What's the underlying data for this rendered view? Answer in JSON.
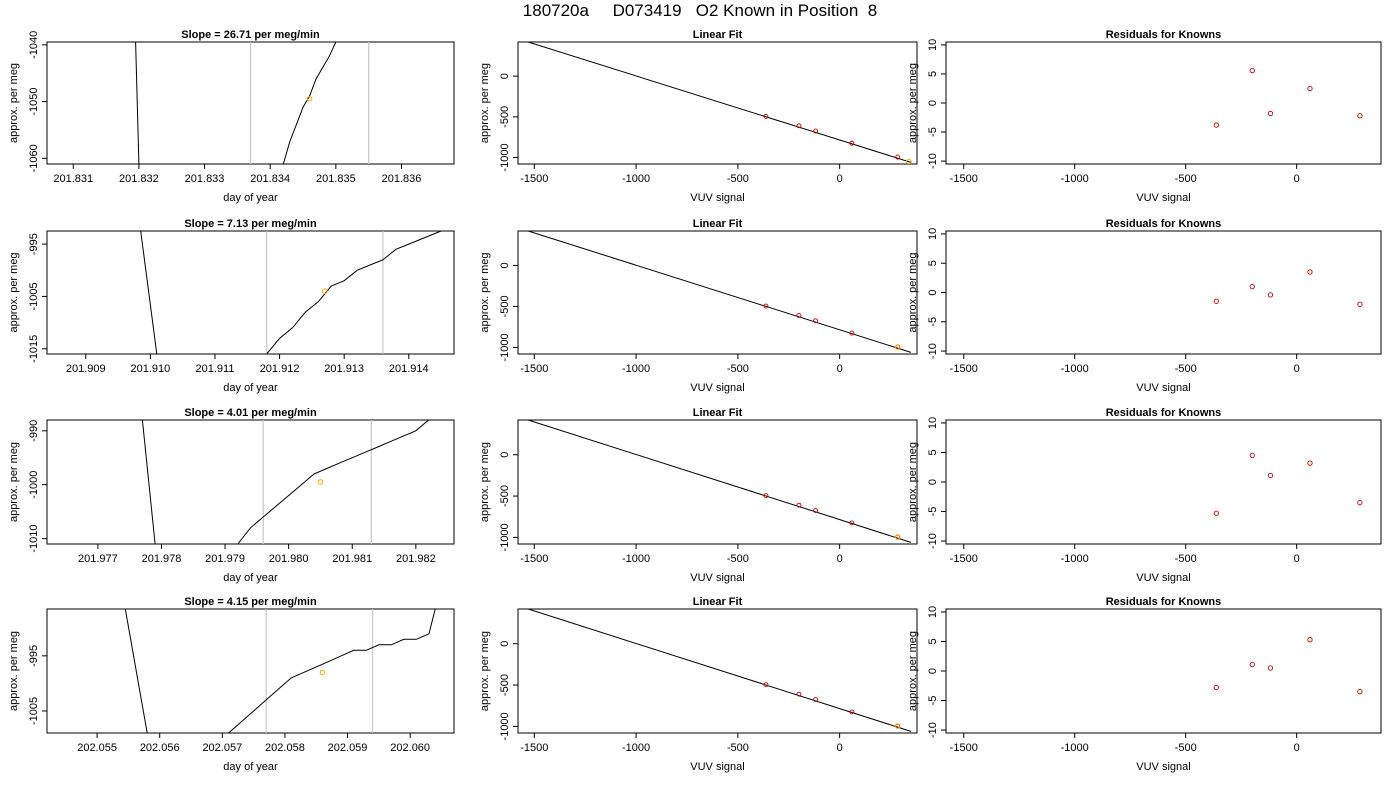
{
  "page": {
    "title": "180720a     D073419   O2 Known in Position  8"
  },
  "colors": {
    "axis": "#000000",
    "trace": "#000000",
    "marker_orange": "#ffa500",
    "residual_red": "#cc0000",
    "vline": "#c8c8c8"
  },
  "chart_data": [
    {
      "type": "line",
      "title": "Slope =  26.71  per meg/min",
      "xlabel": "day of year",
      "ylabel": "approx. per meg",
      "xlim": [
        201.8306,
        201.8368
      ],
      "ylim": [
        -1061,
        -1039.5
      ],
      "xticks": [
        201.831,
        201.832,
        201.833,
        201.834,
        201.835,
        201.836
      ],
      "xtick_labels": [
        "201.831",
        "201.832",
        "201.833",
        "201.834",
        "201.835",
        "201.836"
      ],
      "yticks": [
        -1060,
        -1050,
        -1040
      ],
      "ytick_labels": [
        "-1060",
        "-1050",
        "-1040"
      ],
      "vlines": [
        201.8337,
        201.8355
      ],
      "marker": {
        "x": 201.8346,
        "y": -1049.5
      },
      "trace_segments": [
        {
          "x": [
            201.83195,
            201.832
          ],
          "y": [
            -1039.5,
            -1061
          ]
        },
        {
          "x": [
            201.8342,
            201.8343,
            201.8344,
            201.8345,
            201.8346,
            201.8347,
            201.8348,
            201.8349,
            201.835
          ],
          "y": [
            -1061,
            -1057,
            -1054,
            -1051,
            -1049,
            -1046,
            -1044,
            -1042,
            -1039.5
          ]
        }
      ]
    },
    {
      "type": "scatter",
      "title": "Linear Fit",
      "xlabel": "VUV signal",
      "ylabel": "approx. per meg",
      "xlim": [
        -1580,
        380
      ],
      "ylim": [
        -1080,
        420
      ],
      "xticks": [
        -1500,
        -1000,
        -500,
        0
      ],
      "xtick_labels": [
        "-1500",
        "-1000",
        "-500",
        "0"
      ],
      "yticks": [
        -1000,
        -500,
        0
      ],
      "ytick_labels": [
        "-1000",
        "-500",
        "0"
      ],
      "fit_line": {
        "x": [
          -1530,
          350
        ],
        "y": [
          420,
          -1060
        ]
      },
      "points": {
        "x": [
          -362,
          -200,
          -118,
          60,
          285
        ],
        "y": [
          -495,
          -610,
          -675,
          -825,
          -995
        ]
      },
      "highlight": {
        "x": 340,
        "y": -1050
      }
    },
    {
      "type": "scatter",
      "title": "Residuals for Knowns",
      "xlabel": "VUV signal",
      "ylabel": "approx. per meg",
      "xlim": [
        -1580,
        380
      ],
      "ylim": [
        -10.5,
        10.5
      ],
      "xticks": [
        -1500,
        -1000,
        -500,
        0
      ],
      "xtick_labels": [
        "-1500",
        "-1000",
        "-500",
        "0"
      ],
      "yticks": [
        -10,
        -5,
        0,
        5,
        10
      ],
      "ytick_labels": [
        "-10",
        "-5",
        "0",
        "5",
        "10"
      ],
      "points": {
        "x": [
          -362,
          -200,
          -118,
          60,
          285
        ],
        "y": [
          -3.8,
          5.6,
          -1.8,
          2.5,
          -2.2
        ]
      }
    },
    {
      "type": "line",
      "title": "Slope =  7.13  per meg/min",
      "xlabel": "day of year",
      "ylabel": "approx. per meg",
      "xlim": [
        201.9084,
        201.9147
      ],
      "ylim": [
        -1016,
        -992.5
      ],
      "xticks": [
        201.909,
        201.91,
        201.911,
        201.912,
        201.913,
        201.914
      ],
      "xtick_labels": [
        "201.909",
        "201.910",
        "201.911",
        "201.912",
        "201.913",
        "201.914"
      ],
      "yticks": [
        -1015,
        -1005,
        -995
      ],
      "ytick_labels": [
        "-1015",
        "-1005",
        "-995"
      ],
      "vlines": [
        201.9118,
        201.9136
      ],
      "marker": {
        "x": 201.9127,
        "y": -1004
      },
      "trace_segments": [
        {
          "x": [
            201.90985,
            201.9101
          ],
          "y": [
            -992.5,
            -1016
          ]
        },
        {
          "x": [
            201.9118,
            201.912,
            201.9122,
            201.9124,
            201.9126,
            201.9128,
            201.913,
            201.9132,
            201.9134,
            201.9136,
            201.9138,
            201.914,
            201.9142,
            201.9144,
            201.9145
          ],
          "y": [
            -1016,
            -1013,
            -1011,
            -1008,
            -1006,
            -1003,
            -1002,
            -1000,
            -999,
            -998,
            -996,
            -995,
            -994,
            -993,
            -992.5
          ]
        }
      ]
    },
    {
      "type": "scatter",
      "title": "Linear Fit",
      "xlabel": "VUV signal",
      "ylabel": "approx. per meg",
      "xlim": [
        -1580,
        380
      ],
      "ylim": [
        -1080,
        420
      ],
      "xticks": [
        -1500,
        -1000,
        -500,
        0
      ],
      "xtick_labels": [
        "-1500",
        "-1000",
        "-500",
        "0"
      ],
      "yticks": [
        -1000,
        -500,
        0
      ],
      "ytick_labels": [
        "-1000",
        "-500",
        "0"
      ],
      "fit_line": {
        "x": [
          -1530,
          350
        ],
        "y": [
          420,
          -1060
        ]
      },
      "points": {
        "x": [
          -362,
          -200,
          -118,
          60,
          285
        ],
        "y": [
          -495,
          -610,
          -675,
          -825,
          -995
        ]
      },
      "highlight": {
        "x": 285,
        "y": -995
      }
    },
    {
      "type": "scatter",
      "title": "Residuals for Knowns",
      "xlabel": "VUV signal",
      "ylabel": "approx. per meg",
      "xlim": [
        -1580,
        380
      ],
      "ylim": [
        -10.5,
        10.5
      ],
      "xticks": [
        -1500,
        -1000,
        -500,
        0
      ],
      "xtick_labels": [
        "-1500",
        "-1000",
        "-500",
        "0"
      ],
      "yticks": [
        -10,
        -5,
        0,
        5,
        10
      ],
      "ytick_labels": [
        "-10",
        "-5",
        "0",
        "5",
        "10"
      ],
      "points": {
        "x": [
          -362,
          -200,
          -118,
          60,
          285
        ],
        "y": [
          -1.5,
          1.0,
          -0.4,
          3.5,
          -2.0
        ]
      }
    },
    {
      "type": "line",
      "title": "Slope =  4.01  per meg/min",
      "xlabel": "day of year",
      "ylabel": "approx. per meg",
      "xlim": [
        201.9762,
        201.9826
      ],
      "ylim": [
        -1011,
        -988
      ],
      "xticks": [
        201.977,
        201.978,
        201.979,
        201.98,
        201.981,
        201.982
      ],
      "xtick_labels": [
        "201.977",
        "201.978",
        "201.979",
        "201.980",
        "201.981",
        "201.982"
      ],
      "yticks": [
        -1010,
        -1000,
        -990
      ],
      "ytick_labels": [
        "-1010",
        "-1000",
        "-990"
      ],
      "vlines": [
        201.9796,
        201.9813
      ],
      "marker": {
        "x": 201.9805,
        "y": -999.5
      },
      "trace_segments": [
        {
          "x": [
            201.9777,
            201.9779
          ],
          "y": [
            -988,
            -1011
          ]
        },
        {
          "x": [
            201.9792,
            201.9794,
            201.9796,
            201.9798,
            201.98,
            201.9802,
            201.9804,
            201.9806,
            201.9808,
            201.981,
            201.9812,
            201.9814,
            201.9816,
            201.9818,
            201.982,
            201.9822
          ],
          "y": [
            -1011,
            -1008,
            -1006,
            -1004,
            -1002,
            -1000,
            -998,
            -997,
            -996,
            -995,
            -994,
            -993,
            -992,
            -991,
            -990,
            -988
          ]
        }
      ]
    },
    {
      "type": "scatter",
      "title": "Linear Fit",
      "xlabel": "VUV signal",
      "ylabel": "approx. per meg",
      "xlim": [
        -1580,
        380
      ],
      "ylim": [
        -1080,
        420
      ],
      "xticks": [
        -1500,
        -1000,
        -500,
        0
      ],
      "xtick_labels": [
        "-1500",
        "-1000",
        "-500",
        "0"
      ],
      "yticks": [
        -1000,
        -500,
        0
      ],
      "ytick_labels": [
        "-1000",
        "-500",
        "0"
      ],
      "fit_line": {
        "x": [
          -1530,
          350
        ],
        "y": [
          420,
          -1060
        ]
      },
      "points": {
        "x": [
          -362,
          -200,
          -118,
          60,
          285
        ],
        "y": [
          -495,
          -610,
          -675,
          -825,
          -995
        ]
      },
      "highlight": {
        "x": 285,
        "y": -995
      }
    },
    {
      "type": "scatter",
      "title": "Residuals for Knowns",
      "xlabel": "VUV signal",
      "ylabel": "approx. per meg",
      "xlim": [
        -1580,
        380
      ],
      "ylim": [
        -10.5,
        10.5
      ],
      "xticks": [
        -1500,
        -1000,
        -500,
        0
      ],
      "xtick_labels": [
        "-1500",
        "-1000",
        "-500",
        "0"
      ],
      "yticks": [
        -10,
        -5,
        0,
        5,
        10
      ],
      "ytick_labels": [
        "-10",
        "-5",
        "0",
        "5",
        "10"
      ],
      "points": {
        "x": [
          -362,
          -200,
          -118,
          60,
          285
        ],
        "y": [
          -5.3,
          4.5,
          1.1,
          3.2,
          -3.5
        ]
      }
    },
    {
      "type": "line",
      "title": "Slope =  4.15  per meg/min",
      "xlabel": "day of year",
      "ylabel": "approx. per meg",
      "xlim": [
        202.0542,
        202.0607
      ],
      "ylim": [
        -1009,
        -986.5
      ],
      "xticks": [
        202.055,
        202.056,
        202.057,
        202.058,
        202.059,
        202.06
      ],
      "xtick_labels": [
        "202.055",
        "202.056",
        "202.057",
        "202.058",
        "202.059",
        "202.060"
      ],
      "yticks": [
        -1005,
        -995
      ],
      "ytick_labels": [
        "-1005",
        "-995"
      ],
      "vlines": [
        202.0577,
        202.0594
      ],
      "marker": {
        "x": 202.0586,
        "y": -998
      },
      "trace_segments": [
        {
          "x": [
            202.05545,
            202.0558
          ],
          "y": [
            -986.5,
            -1009
          ]
        },
        {
          "x": [
            202.0571,
            202.0573,
            202.0575,
            202.0577,
            202.0579,
            202.0581,
            202.0583,
            202.0585,
            202.0587,
            202.0589,
            202.0591,
            202.0593,
            202.0595,
            202.0597,
            202.0599,
            202.0601,
            202.0603,
            202.0604
          ],
          "y": [
            -1009,
            -1007,
            -1005,
            -1003,
            -1001,
            -999,
            -998,
            -997,
            -996,
            -995,
            -994,
            -994,
            -993,
            -993,
            -992,
            -992,
            -991,
            -986.5
          ]
        }
      ]
    },
    {
      "type": "scatter",
      "title": "Linear Fit",
      "xlabel": "VUV signal",
      "ylabel": "approx. per meg",
      "xlim": [
        -1580,
        380
      ],
      "ylim": [
        -1080,
        420
      ],
      "xticks": [
        -1500,
        -1000,
        -500,
        0
      ],
      "xtick_labels": [
        "-1500",
        "-1000",
        "-500",
        "0"
      ],
      "yticks": [
        -1000,
        -500,
        0
      ],
      "ytick_labels": [
        "-1000",
        "-500",
        "0"
      ],
      "fit_line": {
        "x": [
          -1530,
          350
        ],
        "y": [
          420,
          -1060
        ]
      },
      "points": {
        "x": [
          -362,
          -200,
          -118,
          60,
          285
        ],
        "y": [
          -495,
          -610,
          -675,
          -825,
          -995
        ]
      },
      "highlight": {
        "x": 285,
        "y": -995
      }
    },
    {
      "type": "scatter",
      "title": "Residuals for Knowns",
      "xlabel": "VUV signal",
      "ylabel": "approx. per meg",
      "xlim": [
        -1580,
        380
      ],
      "ylim": [
        -10.5,
        10.5
      ],
      "xticks": [
        -1500,
        -1000,
        -500,
        0
      ],
      "xtick_labels": [
        "-1500",
        "-1000",
        "-500",
        "0"
      ],
      "yticks": [
        -10,
        -5,
        0,
        5,
        10
      ],
      "ytick_labels": [
        "-10",
        "-5",
        "0",
        "5",
        "10"
      ],
      "points": {
        "x": [
          -362,
          -200,
          -118,
          60,
          285
        ],
        "y": [
          -2.8,
          1.1,
          0.5,
          5.3,
          -3.5
        ]
      }
    }
  ]
}
